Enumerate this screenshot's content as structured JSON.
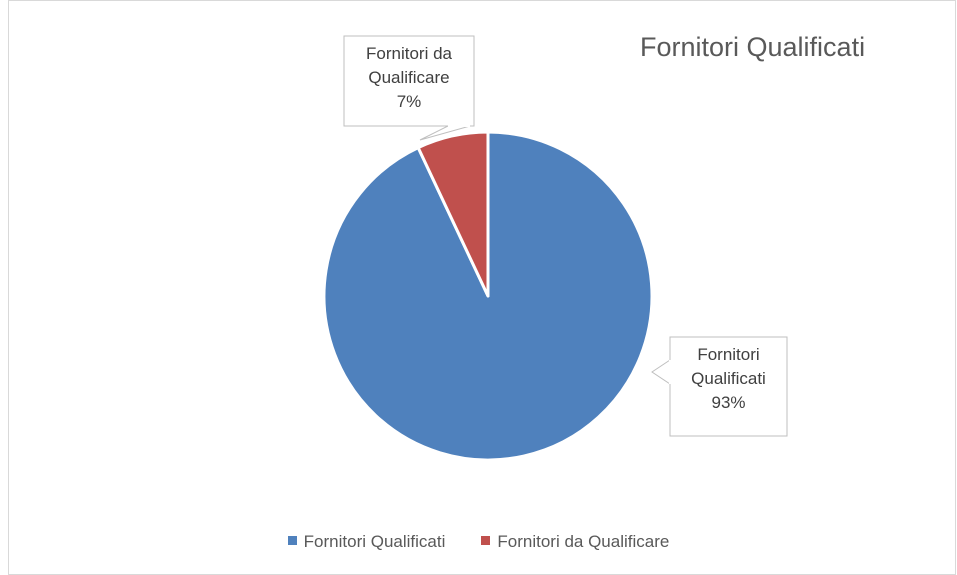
{
  "chart_data": {
    "type": "pie",
    "title": "Fornitori Qualificati",
    "categories": [
      "Fornitori Qualificati",
      "Fornitori da Qualificare"
    ],
    "values": [
      93,
      7
    ],
    "value_labels": [
      "93%",
      "7%"
    ],
    "colors": [
      "#4f81bd",
      "#c0504d"
    ],
    "legend": "bottom"
  }
}
